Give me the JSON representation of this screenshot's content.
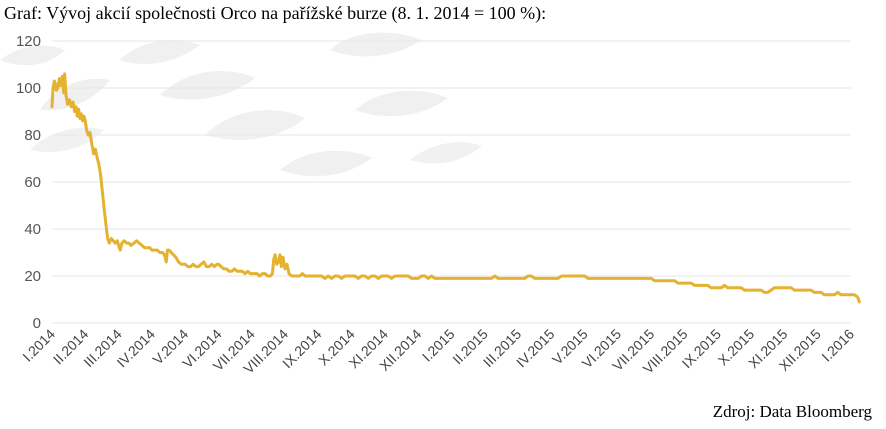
{
  "title": "Graf: Vývoj akcií společnosti Orco na pařížské burze (8. 1. 2014 = 100 %):",
  "source": "Zdroj: Data Bloomberg",
  "colors": {
    "line": "#e5b22f",
    "grid": "#e6e6e6",
    "watermark": "#eeeeee"
  },
  "chart_data": {
    "type": "line",
    "ylim": [
      0,
      120
    ],
    "yticks": [
      0,
      20,
      40,
      60,
      80,
      100,
      120
    ],
    "grid": true,
    "legend": "none",
    "categories": [
      "I.2014",
      "II.2014",
      "III.2014",
      "IV.2014",
      "V.2014",
      "VI.2014",
      "VII.2014",
      "VIII.2014",
      "IX.2014",
      "X.2014",
      "XI.2014",
      "XII.2014",
      "I.2015",
      "II.2015",
      "III.2015",
      "IV.2015",
      "V.2015",
      "VI.2015",
      "VII.2015",
      "VIII.2015",
      "IX.2015",
      "X.2015",
      "XI.2015",
      "XII.2015",
      "I.2016"
    ],
    "series": [
      {
        "points": [
          [
            0.0,
            92
          ],
          [
            0.03,
            100
          ],
          [
            0.07,
            103
          ],
          [
            0.1,
            102
          ],
          [
            0.13,
            99
          ],
          [
            0.18,
            100
          ],
          [
            0.22,
            104
          ],
          [
            0.27,
            101
          ],
          [
            0.31,
            105
          ],
          [
            0.35,
            98
          ],
          [
            0.38,
            106
          ],
          [
            0.42,
            97
          ],
          [
            0.47,
            93
          ],
          [
            0.53,
            95
          ],
          [
            0.58,
            92
          ],
          [
            0.63,
            94
          ],
          [
            0.68,
            90
          ],
          [
            0.72,
            92
          ],
          [
            0.76,
            88
          ],
          [
            0.8,
            91
          ],
          [
            0.84,
            87
          ],
          [
            0.88,
            89
          ],
          [
            0.92,
            86
          ],
          [
            0.96,
            88
          ],
          [
            1.0,
            86
          ],
          [
            1.04,
            82
          ],
          [
            1.09,
            80
          ],
          [
            1.14,
            81
          ],
          [
            1.2,
            76
          ],
          [
            1.25,
            72
          ],
          [
            1.3,
            74
          ],
          [
            1.36,
            70
          ],
          [
            1.4,
            68
          ],
          [
            1.46,
            63
          ],
          [
            1.52,
            55
          ],
          [
            1.57,
            48
          ],
          [
            1.62,
            42
          ],
          [
            1.67,
            36
          ],
          [
            1.72,
            34
          ],
          [
            1.78,
            36
          ],
          [
            1.84,
            35
          ],
          [
            1.9,
            34
          ],
          [
            1.96,
            35
          ],
          [
            2.0,
            33
          ],
          [
            2.05,
            31
          ],
          [
            2.1,
            34
          ],
          [
            2.17,
            35
          ],
          [
            2.24,
            34
          ],
          [
            2.31,
            34
          ],
          [
            2.38,
            33
          ],
          [
            2.46,
            34
          ],
          [
            2.54,
            35
          ],
          [
            2.62,
            34
          ],
          [
            2.7,
            33
          ],
          [
            2.78,
            32
          ],
          [
            2.86,
            32
          ],
          [
            2.94,
            32
          ],
          [
            3.0,
            31
          ],
          [
            3.08,
            31
          ],
          [
            3.16,
            31
          ],
          [
            3.24,
            30
          ],
          [
            3.32,
            30
          ],
          [
            3.38,
            29
          ],
          [
            3.43,
            26
          ],
          [
            3.47,
            31
          ],
          [
            3.52,
            31
          ],
          [
            3.58,
            30
          ],
          [
            3.65,
            29
          ],
          [
            3.72,
            28
          ],
          [
            3.8,
            26
          ],
          [
            3.88,
            25
          ],
          [
            3.95,
            25
          ],
          [
            4.0,
            25
          ],
          [
            4.08,
            24
          ],
          [
            4.16,
            24
          ],
          [
            4.24,
            25
          ],
          [
            4.32,
            24
          ],
          [
            4.4,
            24
          ],
          [
            4.48,
            25
          ],
          [
            4.56,
            26
          ],
          [
            4.64,
            24
          ],
          [
            4.72,
            24
          ],
          [
            4.8,
            25
          ],
          [
            4.88,
            24
          ],
          [
            4.95,
            25
          ],
          [
            5.0,
            25
          ],
          [
            5.08,
            24
          ],
          [
            5.16,
            23
          ],
          [
            5.24,
            23
          ],
          [
            5.32,
            22
          ],
          [
            5.4,
            22
          ],
          [
            5.48,
            23
          ],
          [
            5.56,
            22
          ],
          [
            5.64,
            22
          ],
          [
            5.72,
            22
          ],
          [
            5.8,
            21
          ],
          [
            5.88,
            22
          ],
          [
            5.95,
            21
          ],
          [
            6.0,
            21
          ],
          [
            6.08,
            21
          ],
          [
            6.16,
            21
          ],
          [
            6.24,
            20
          ],
          [
            6.32,
            21
          ],
          [
            6.4,
            21
          ],
          [
            6.48,
            20
          ],
          [
            6.56,
            20
          ],
          [
            6.62,
            21
          ],
          [
            6.66,
            27
          ],
          [
            6.7,
            29
          ],
          [
            6.75,
            25
          ],
          [
            6.8,
            26
          ],
          [
            6.85,
            29
          ],
          [
            6.89,
            24
          ],
          [
            6.94,
            28
          ],
          [
            7.0,
            23
          ],
          [
            7.06,
            25
          ],
          [
            7.12,
            21
          ],
          [
            7.2,
            20
          ],
          [
            7.28,
            20
          ],
          [
            7.36,
            20
          ],
          [
            7.44,
            20
          ],
          [
            7.52,
            21
          ],
          [
            7.6,
            20
          ],
          [
            7.68,
            20
          ],
          [
            7.76,
            20
          ],
          [
            7.84,
            20
          ],
          [
            7.92,
            20
          ],
          [
            8.0,
            20
          ],
          [
            8.1,
            20
          ],
          [
            8.2,
            19
          ],
          [
            8.3,
            20
          ],
          [
            8.4,
            19
          ],
          [
            8.5,
            20
          ],
          [
            8.6,
            20
          ],
          [
            8.7,
            19
          ],
          [
            8.8,
            20
          ],
          [
            8.9,
            20
          ],
          [
            9.0,
            20
          ],
          [
            9.1,
            20
          ],
          [
            9.2,
            19
          ],
          [
            9.3,
            20
          ],
          [
            9.4,
            20
          ],
          [
            9.5,
            19
          ],
          [
            9.6,
            20
          ],
          [
            9.7,
            20
          ],
          [
            9.8,
            19
          ],
          [
            9.9,
            20
          ],
          [
            10.0,
            20
          ],
          [
            10.1,
            20
          ],
          [
            10.2,
            19
          ],
          [
            10.3,
            20
          ],
          [
            10.4,
            20
          ],
          [
            10.5,
            20
          ],
          [
            10.6,
            20
          ],
          [
            10.7,
            20
          ],
          [
            10.8,
            19
          ],
          [
            10.9,
            19
          ],
          [
            11.0,
            19
          ],
          [
            11.1,
            20
          ],
          [
            11.2,
            20
          ],
          [
            11.3,
            19
          ],
          [
            11.4,
            20
          ],
          [
            11.5,
            19
          ],
          [
            11.6,
            19
          ],
          [
            11.7,
            19
          ],
          [
            11.8,
            19
          ],
          [
            11.9,
            19
          ],
          [
            12.0,
            19
          ],
          [
            12.1,
            19
          ],
          [
            12.2,
            19
          ],
          [
            12.3,
            19
          ],
          [
            12.4,
            19
          ],
          [
            12.5,
            19
          ],
          [
            12.6,
            19
          ],
          [
            12.7,
            19
          ],
          [
            12.8,
            19
          ],
          [
            12.9,
            19
          ],
          [
            13.0,
            19
          ],
          [
            13.1,
            19
          ],
          [
            13.2,
            19
          ],
          [
            13.3,
            20
          ],
          [
            13.4,
            19
          ],
          [
            13.5,
            19
          ],
          [
            13.6,
            19
          ],
          [
            13.7,
            19
          ],
          [
            13.8,
            19
          ],
          [
            13.9,
            19
          ],
          [
            14.0,
            19
          ],
          [
            14.1,
            19
          ],
          [
            14.2,
            19
          ],
          [
            14.3,
            20
          ],
          [
            14.4,
            20
          ],
          [
            14.5,
            19
          ],
          [
            14.6,
            19
          ],
          [
            14.7,
            19
          ],
          [
            14.8,
            19
          ],
          [
            14.9,
            19
          ],
          [
            15.0,
            19
          ],
          [
            15.1,
            19
          ],
          [
            15.2,
            19
          ],
          [
            15.3,
            20
          ],
          [
            15.4,
            20
          ],
          [
            15.5,
            20
          ],
          [
            15.6,
            20
          ],
          [
            15.7,
            20
          ],
          [
            15.8,
            20
          ],
          [
            15.9,
            20
          ],
          [
            16.0,
            20
          ],
          [
            16.1,
            19
          ],
          [
            16.2,
            19
          ],
          [
            16.3,
            19
          ],
          [
            16.4,
            19
          ],
          [
            16.5,
            19
          ],
          [
            16.6,
            19
          ],
          [
            16.7,
            19
          ],
          [
            16.8,
            19
          ],
          [
            16.9,
            19
          ],
          [
            17.0,
            19
          ],
          [
            17.1,
            19
          ],
          [
            17.2,
            19
          ],
          [
            17.3,
            19
          ],
          [
            17.4,
            19
          ],
          [
            17.5,
            19
          ],
          [
            17.6,
            19
          ],
          [
            17.7,
            19
          ],
          [
            17.8,
            19
          ],
          [
            17.9,
            19
          ],
          [
            18.0,
            19
          ],
          [
            18.1,
            18
          ],
          [
            18.2,
            18
          ],
          [
            18.3,
            18
          ],
          [
            18.4,
            18
          ],
          [
            18.5,
            18
          ],
          [
            18.6,
            18
          ],
          [
            18.7,
            18
          ],
          [
            18.8,
            17
          ],
          [
            18.9,
            17
          ],
          [
            19.0,
            17
          ],
          [
            19.1,
            17
          ],
          [
            19.2,
            17
          ],
          [
            19.3,
            16
          ],
          [
            19.4,
            16
          ],
          [
            19.5,
            16
          ],
          [
            19.6,
            16
          ],
          [
            19.7,
            16
          ],
          [
            19.8,
            15
          ],
          [
            19.9,
            15
          ],
          [
            20.0,
            15
          ],
          [
            20.1,
            15
          ],
          [
            20.2,
            16
          ],
          [
            20.3,
            15
          ],
          [
            20.4,
            15
          ],
          [
            20.5,
            15
          ],
          [
            20.6,
            15
          ],
          [
            20.7,
            15
          ],
          [
            20.8,
            14
          ],
          [
            20.9,
            14
          ],
          [
            21.0,
            14
          ],
          [
            21.1,
            14
          ],
          [
            21.2,
            14
          ],
          [
            21.3,
            14
          ],
          [
            21.4,
            13
          ],
          [
            21.5,
            13
          ],
          [
            21.6,
            14
          ],
          [
            21.7,
            15
          ],
          [
            21.8,
            15
          ],
          [
            21.9,
            15
          ],
          [
            22.0,
            15
          ],
          [
            22.1,
            15
          ],
          [
            22.2,
            15
          ],
          [
            22.3,
            14
          ],
          [
            22.4,
            14
          ],
          [
            22.5,
            14
          ],
          [
            22.6,
            14
          ],
          [
            22.7,
            14
          ],
          [
            22.8,
            14
          ],
          [
            22.9,
            13
          ],
          [
            23.0,
            13
          ],
          [
            23.1,
            13
          ],
          [
            23.2,
            12
          ],
          [
            23.3,
            12
          ],
          [
            23.4,
            12
          ],
          [
            23.5,
            12
          ],
          [
            23.6,
            13
          ],
          [
            23.7,
            12
          ],
          [
            23.8,
            12
          ],
          [
            23.9,
            12
          ],
          [
            24.0,
            12
          ],
          [
            24.1,
            12
          ],
          [
            24.2,
            11
          ],
          [
            24.25,
            9
          ]
        ]
      }
    ]
  }
}
